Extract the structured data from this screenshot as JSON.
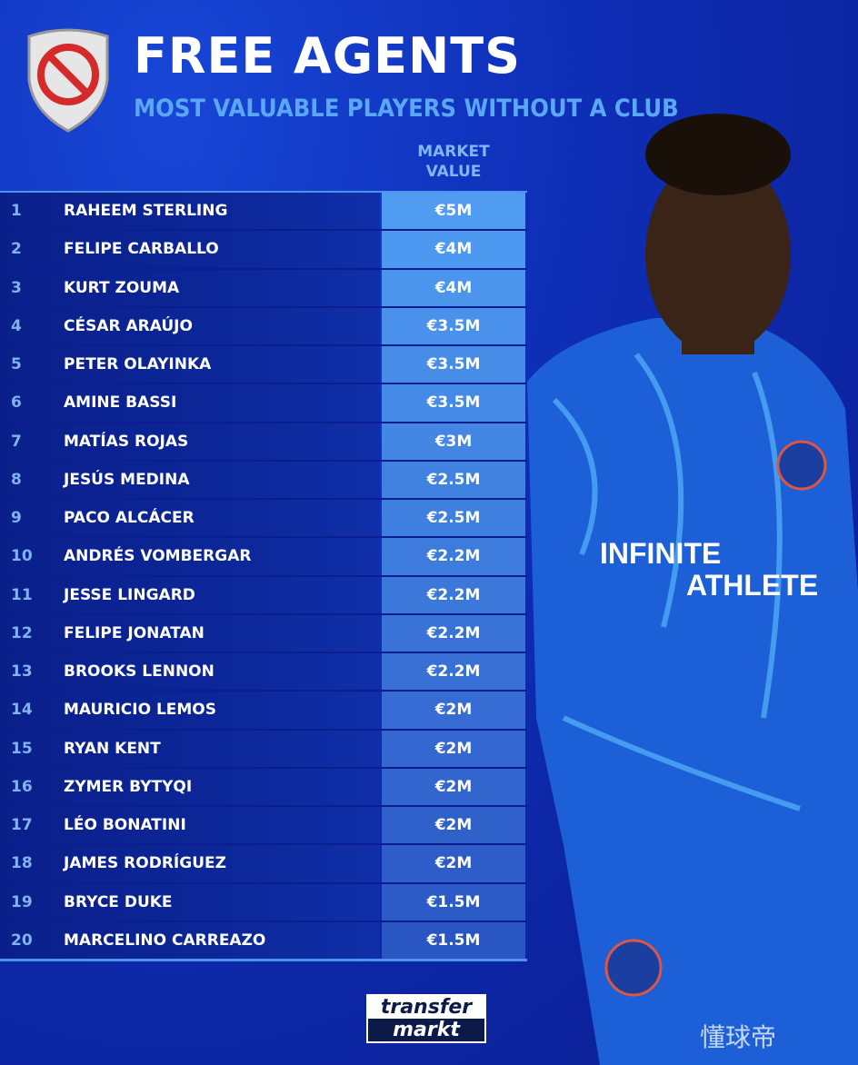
{
  "header": {
    "title": "FREE AGENTS",
    "subtitle": "MOST VALUABLE PLAYERS WITHOUT A CLUB",
    "icon": "no-entry-shield-icon"
  },
  "table": {
    "column_header_line1": "MARKET",
    "column_header_line2": "VALUE",
    "rows": [
      {
        "rank": "1",
        "name": "RAHEEM STERLING",
        "value": "€5M"
      },
      {
        "rank": "2",
        "name": "FELIPE CARBALLO",
        "value": "€4M"
      },
      {
        "rank": "3",
        "name": "KURT ZOUMA",
        "value": "€4M"
      },
      {
        "rank": "4",
        "name": "CÉSAR ARAÚJO",
        "value": "€3.5M"
      },
      {
        "rank": "5",
        "name": "PETER OLAYINKA",
        "value": "€3.5M"
      },
      {
        "rank": "6",
        "name": " AMINE BASSI",
        "value": "€3.5M"
      },
      {
        "rank": "7",
        "name": "MATÍAS ROJAS",
        "value": "€3M"
      },
      {
        "rank": "8",
        "name": "JESÚS MEDINA",
        "value": "€2.5M"
      },
      {
        "rank": "9",
        "name": "PACO ALCÁCER",
        "value": "€2.5M"
      },
      {
        "rank": "10",
        "name": "ANDRÉS VOMBERGAR",
        "value": "€2.2M"
      },
      {
        "rank": "11",
        "name": "JESSE LINGARD",
        "value": "€2.2M"
      },
      {
        "rank": "12",
        "name": "FELIPE JONATAN",
        "value": "€2.2M"
      },
      {
        "rank": "13",
        "name": "BROOKS LENNON",
        "value": "€2.2M"
      },
      {
        "rank": "14",
        "name": "MAURICIO LEMOS",
        "value": "€2M"
      },
      {
        "rank": "15",
        "name": "RYAN KENT",
        "value": "€2M"
      },
      {
        "rank": "16",
        "name": "ZYMER BYTYQI",
        "value": "€2M"
      },
      {
        "rank": "17",
        "name": "LÉO BONATINI",
        "value": "€2M"
      },
      {
        "rank": "18",
        "name": "JAMES RODRÍGUEZ",
        "value": "€2M"
      },
      {
        "rank": "19",
        "name": "BRYCE DUKE",
        "value": "€1.5M"
      },
      {
        "rank": "20",
        "name": "MARCELINO CARREAZO",
        "value": "€1.5M"
      }
    ]
  },
  "footer": {
    "logo_line1": "transfer",
    "logo_line2": "markt",
    "watermark": "懂球帝"
  },
  "colors": {
    "value_top": "#4f9cf2",
    "value_bottom": "#2a56c4",
    "subtitle": "#5aa8f5"
  }
}
